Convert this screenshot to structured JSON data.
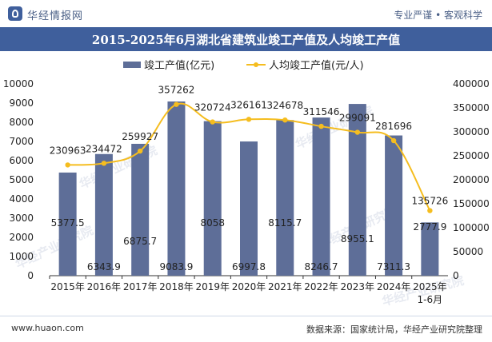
{
  "header": {
    "logo_text": "华经情报网",
    "slogan": "专业严谨 • 客观科学"
  },
  "footer": {
    "url": "www.huaon.com",
    "source": "数据来源：国家统计局，华经产业研究院整理"
  },
  "watermark": "华经产业研究院",
  "colors": {
    "bar": "#5e6e98",
    "line": "#f5bd1f",
    "title_bar": "#3f5f9c"
  },
  "chart_data": {
    "type": "bar",
    "title": "2015-2025年6月湖北省建筑业竣工产值及人均竣工产值",
    "categories": [
      "2015年",
      "2016年",
      "2017年",
      "2018年",
      "2019年",
      "2020年",
      "2021年",
      "2022年",
      "2023年",
      "2024年",
      "2025年\n1-6月"
    ],
    "series": [
      {
        "name": "竣工产值(亿元)",
        "type": "bar",
        "axis": "left",
        "values": [
          5377.5,
          6343.9,
          6875.7,
          9083.9,
          8058,
          6997.8,
          8115.7,
          8246.7,
          8955.1,
          7311.3,
          2777.9
        ],
        "labels": [
          "5377.5",
          "6343.9",
          "6875.7",
          "9083.9",
          "8058",
          "6997.8",
          "8115.7",
          "8246.7",
          "8955.1",
          "7311.3",
          "2777.9"
        ]
      },
      {
        "name": "人均竣工产值(元/人)",
        "type": "line",
        "axis": "right",
        "values": [
          230963,
          234472,
          259927,
          357262,
          320724,
          326161,
          324678,
          311546,
          299091,
          281696,
          135726
        ],
        "labels": [
          "230963",
          "234472",
          "259927",
          "357262",
          "320724",
          "326161",
          "324678",
          "311546",
          "299091",
          "281696",
          "135726"
        ]
      }
    ],
    "y_left": {
      "min": 0,
      "max": 10000,
      "ticks": [
        "0",
        "1000",
        "2000",
        "3000",
        "4000",
        "5000",
        "6000",
        "7000",
        "8000",
        "9000",
        "10000"
      ]
    },
    "y_right": {
      "min": 0,
      "max": 400000,
      "ticks": [
        "0",
        "50000",
        "100000",
        "150000",
        "200000",
        "250000",
        "300000",
        "350000",
        "400000"
      ]
    },
    "legend_position": "top-center",
    "grid": false
  }
}
